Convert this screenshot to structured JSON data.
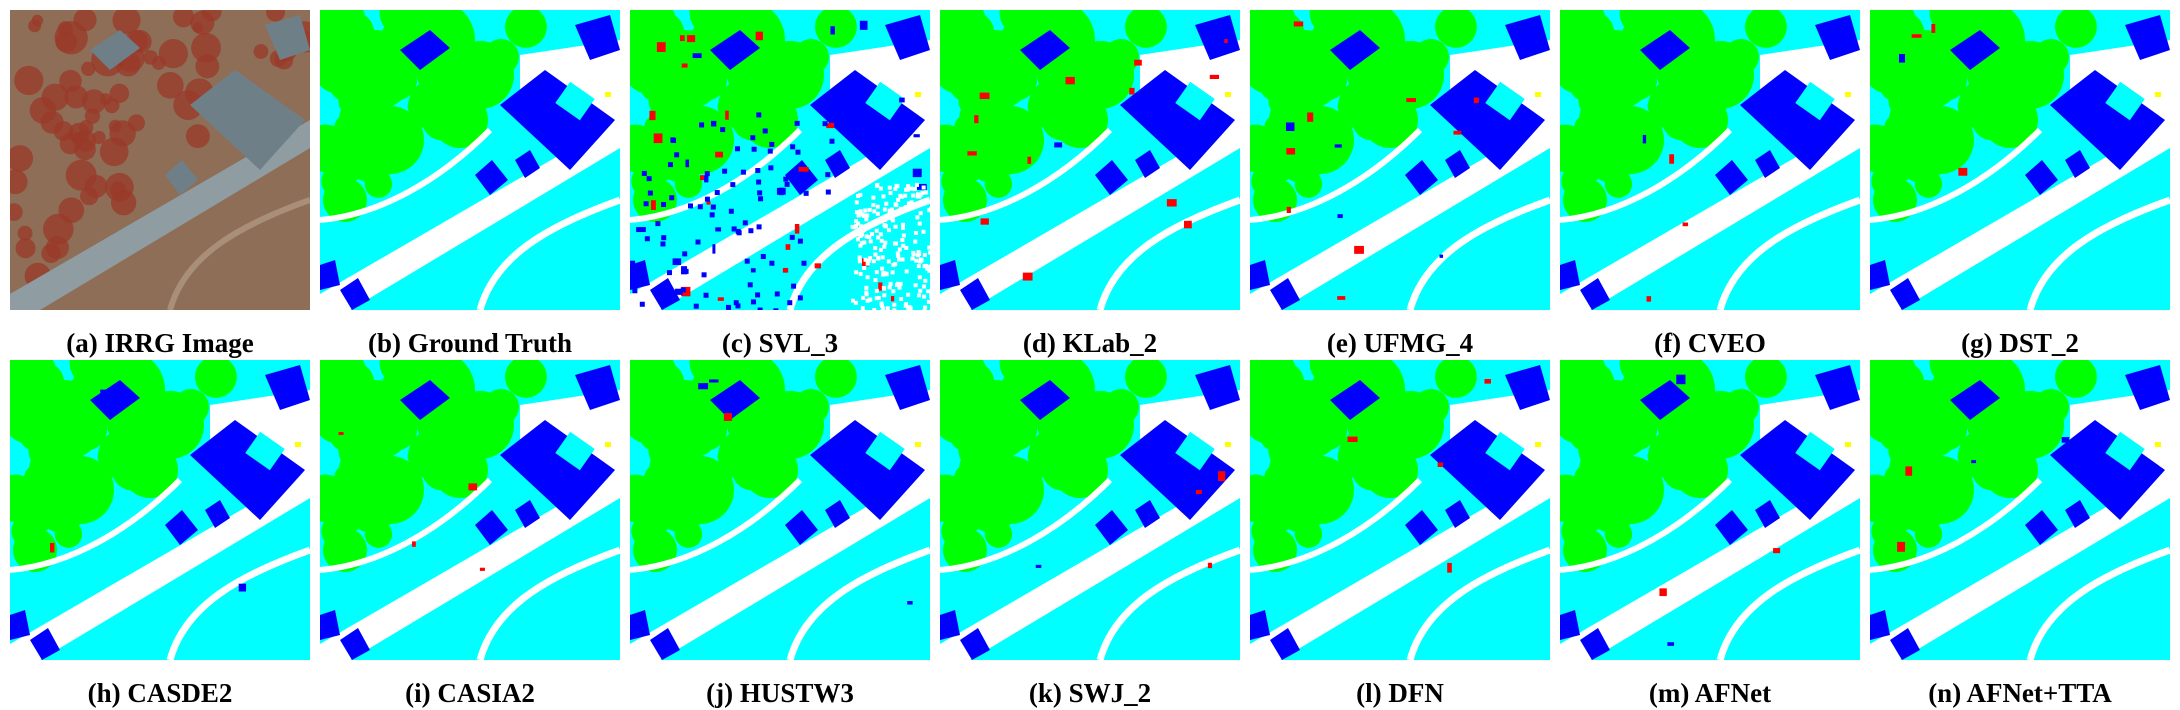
{
  "figure": {
    "panels": [
      {
        "id": "a",
        "caption": "(a) IRRG Image",
        "kind": "photo"
      },
      {
        "id": "b",
        "caption": "(b) Ground Truth",
        "kind": "map",
        "noise": 0
      },
      {
        "id": "c",
        "caption": "(c) SVL_3",
        "kind": "map",
        "noise": 3
      },
      {
        "id": "d",
        "caption": "(d) KLab_2",
        "kind": "map",
        "noise": 2
      },
      {
        "id": "e",
        "caption": "(e) UFMG_4",
        "kind": "map",
        "noise": 2
      },
      {
        "id": "f",
        "caption": "(f) CVEO",
        "kind": "map",
        "noise": 1
      },
      {
        "id": "g",
        "caption": "(g) DST_2",
        "kind": "map",
        "noise": 1
      },
      {
        "id": "h",
        "caption": "(h) CASDE2",
        "kind": "map",
        "noise": 1
      },
      {
        "id": "i",
        "caption": "(i) CASIA2",
        "kind": "map",
        "noise": 1
      },
      {
        "id": "j",
        "caption": "(j) HUSTW3",
        "kind": "map",
        "noise": 1
      },
      {
        "id": "k",
        "caption": "(k) SWJ_2",
        "kind": "map",
        "noise": 1
      },
      {
        "id": "l",
        "caption": "(l) DFN",
        "kind": "map",
        "noise": 1
      },
      {
        "id": "m",
        "caption": "(m) AFNet",
        "kind": "map",
        "noise": 1
      },
      {
        "id": "n",
        "caption": "(n) AFNet+TTA",
        "kind": "map",
        "noise": 1
      }
    ],
    "class_colors": {
      "impervious": "#ffffff",
      "building": "#0000ff",
      "low_vegetation": "#00ffff",
      "tree": "#00ff00",
      "car": "#ffff00",
      "clutter": "#ff0000"
    },
    "photo_colors": {
      "ground": "#8e6e57",
      "vegetation": "#9a3a28",
      "road": "#8f9da3",
      "roof": "#6f7f88"
    }
  }
}
